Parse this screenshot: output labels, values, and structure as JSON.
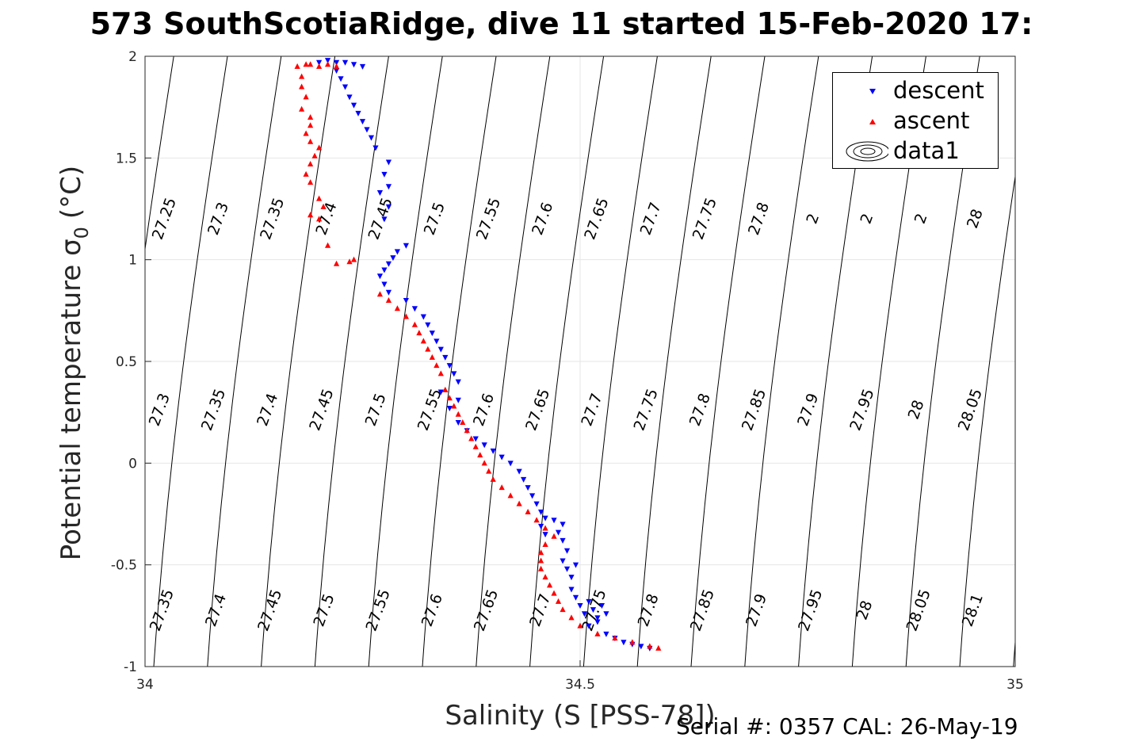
{
  "title": "573 SouthScotiaRidge, dive 11 started 15-Feb-2020 17:",
  "footer": "Serial #: 0357  CAL: 26-May-19",
  "chart_data": {
    "type": "scatter",
    "xlabel": "Salinity (S [PSS-78])",
    "ylabel": "Potential temperature σ",
    "ylabel_subscript": "0",
    "ylabel_unit": "(°C)",
    "xlim": [
      34,
      35
    ],
    "ylim": [
      -1,
      2
    ],
    "xticks": [
      34,
      34.5,
      35
    ],
    "xtick_labels": [
      "34",
      "34.5",
      "35"
    ],
    "yticks": [
      -1,
      -0.5,
      0,
      0.5,
      1,
      1.5,
      2
    ],
    "ytick_labels": [
      "-1",
      "-0.5",
      "0",
      "0.5",
      "1",
      "1.5",
      "2"
    ],
    "grid": true,
    "legend_position": "top-right",
    "series": [
      {
        "name": "descent",
        "color": "#0000ff",
        "marker": "triangle-down",
        "points": [
          [
            34.2,
            1.97
          ],
          [
            34.21,
            1.98
          ],
          [
            34.22,
            1.97
          ],
          [
            34.23,
            1.97
          ],
          [
            34.24,
            1.96
          ],
          [
            34.25,
            1.95
          ],
          [
            34.22,
            1.93
          ],
          [
            34.225,
            1.89
          ],
          [
            34.23,
            1.85
          ],
          [
            34.235,
            1.8
          ],
          [
            34.24,
            1.76
          ],
          [
            34.245,
            1.72
          ],
          [
            34.25,
            1.68
          ],
          [
            34.255,
            1.64
          ],
          [
            34.26,
            1.6
          ],
          [
            34.265,
            1.55
          ],
          [
            34.28,
            1.48
          ],
          [
            34.275,
            1.42
          ],
          [
            34.28,
            1.36
          ],
          [
            34.27,
            1.33
          ],
          [
            34.28,
            1.26
          ],
          [
            34.275,
            1.2
          ],
          [
            34.3,
            1.07
          ],
          [
            34.29,
            1.04
          ],
          [
            34.285,
            1.01
          ],
          [
            34.28,
            0.98
          ],
          [
            34.275,
            0.95
          ],
          [
            34.27,
            0.92
          ],
          [
            34.275,
            0.88
          ],
          [
            34.28,
            0.84
          ],
          [
            34.3,
            0.8
          ],
          [
            34.31,
            0.76
          ],
          [
            34.32,
            0.72
          ],
          [
            34.325,
            0.68
          ],
          [
            34.33,
            0.64
          ],
          [
            34.335,
            0.6
          ],
          [
            34.34,
            0.56
          ],
          [
            34.345,
            0.52
          ],
          [
            34.35,
            0.48
          ],
          [
            34.355,
            0.44
          ],
          [
            34.36,
            0.4
          ],
          [
            34.34,
            0.35
          ],
          [
            34.36,
            0.31
          ],
          [
            34.35,
            0.27
          ],
          [
            34.36,
            0.2
          ],
          [
            34.37,
            0.16
          ],
          [
            34.38,
            0.12
          ],
          [
            34.39,
            0.09
          ],
          [
            34.4,
            0.06
          ],
          [
            34.41,
            0.03
          ],
          [
            34.42,
            0.0
          ],
          [
            34.43,
            -0.04
          ],
          [
            34.435,
            -0.08
          ],
          [
            34.44,
            -0.12
          ],
          [
            34.445,
            -0.16
          ],
          [
            34.45,
            -0.2
          ],
          [
            34.455,
            -0.24
          ],
          [
            34.46,
            -0.27
          ],
          [
            34.455,
            -0.31
          ],
          [
            34.46,
            -0.35
          ],
          [
            34.47,
            -0.28
          ],
          [
            34.475,
            -0.34
          ],
          [
            34.48,
            -0.3
          ],
          [
            34.48,
            -0.38
          ],
          [
            34.485,
            -0.43
          ],
          [
            34.48,
            -0.48
          ],
          [
            34.485,
            -0.52
          ],
          [
            34.49,
            -0.56
          ],
          [
            34.495,
            -0.5
          ],
          [
            34.49,
            -0.62
          ],
          [
            34.495,
            -0.66
          ],
          [
            34.5,
            -0.7
          ],
          [
            34.505,
            -0.74
          ],
          [
            34.51,
            -0.68
          ],
          [
            34.515,
            -0.72
          ],
          [
            34.52,
            -0.76
          ],
          [
            34.525,
            -0.7
          ],
          [
            34.53,
            -0.74
          ],
          [
            34.52,
            -0.78
          ],
          [
            34.51,
            -0.8
          ],
          [
            34.53,
            -0.84
          ],
          [
            34.54,
            -0.86
          ],
          [
            34.55,
            -0.88
          ],
          [
            34.56,
            -0.89
          ],
          [
            34.57,
            -0.9
          ],
          [
            34.58,
            -0.91
          ]
        ]
      },
      {
        "name": "ascent",
        "color": "#ff0000",
        "marker": "triangle-up",
        "points": [
          [
            34.175,
            1.95
          ],
          [
            34.185,
            1.96
          ],
          [
            34.19,
            1.96
          ],
          [
            34.2,
            1.95
          ],
          [
            34.21,
            1.96
          ],
          [
            34.22,
            1.95
          ],
          [
            34.18,
            1.9
          ],
          [
            34.18,
            1.85
          ],
          [
            34.185,
            1.8
          ],
          [
            34.18,
            1.74
          ],
          [
            34.19,
            1.7
          ],
          [
            34.19,
            1.66
          ],
          [
            34.185,
            1.62
          ],
          [
            34.19,
            1.58
          ],
          [
            34.2,
            1.55
          ],
          [
            34.195,
            1.51
          ],
          [
            34.19,
            1.47
          ],
          [
            34.185,
            1.42
          ],
          [
            34.19,
            1.38
          ],
          [
            34.2,
            1.3
          ],
          [
            34.205,
            1.26
          ],
          [
            34.19,
            1.22
          ],
          [
            34.2,
            1.2
          ],
          [
            34.21,
            1.07
          ],
          [
            34.22,
            0.98
          ],
          [
            34.235,
            0.99
          ],
          [
            34.24,
            1.0
          ],
          [
            34.27,
            0.83
          ],
          [
            34.28,
            0.8
          ],
          [
            34.29,
            0.76
          ],
          [
            34.3,
            0.72
          ],
          [
            34.31,
            0.68
          ],
          [
            34.315,
            0.64
          ],
          [
            34.32,
            0.6
          ],
          [
            34.325,
            0.56
          ],
          [
            34.33,
            0.52
          ],
          [
            34.335,
            0.48
          ],
          [
            34.34,
            0.44
          ],
          [
            34.345,
            0.36
          ],
          [
            34.35,
            0.32
          ],
          [
            34.355,
            0.28
          ],
          [
            34.36,
            0.24
          ],
          [
            34.365,
            0.2
          ],
          [
            34.37,
            0.16
          ],
          [
            34.375,
            0.12
          ],
          [
            34.38,
            0.08
          ],
          [
            34.385,
            0.04
          ],
          [
            34.39,
            0.0
          ],
          [
            34.395,
            -0.04
          ],
          [
            34.4,
            -0.08
          ],
          [
            34.41,
            -0.12
          ],
          [
            34.42,
            -0.16
          ],
          [
            34.43,
            -0.2
          ],
          [
            34.44,
            -0.24
          ],
          [
            34.45,
            -0.28
          ],
          [
            34.46,
            -0.32
          ],
          [
            34.47,
            -0.36
          ],
          [
            34.46,
            -0.4
          ],
          [
            34.455,
            -0.44
          ],
          [
            34.455,
            -0.48
          ],
          [
            34.455,
            -0.52
          ],
          [
            34.46,
            -0.56
          ],
          [
            34.465,
            -0.6
          ],
          [
            34.47,
            -0.64
          ],
          [
            34.475,
            -0.68
          ],
          [
            34.48,
            -0.72
          ],
          [
            34.49,
            -0.76
          ],
          [
            34.5,
            -0.8
          ],
          [
            34.52,
            -0.84
          ],
          [
            34.54,
            -0.86
          ],
          [
            34.56,
            -0.88
          ],
          [
            34.58,
            -0.9
          ],
          [
            34.59,
            -0.91
          ]
        ]
      },
      {
        "name": "data1",
        "color": "#000000",
        "marker": "contour"
      }
    ]
  },
  "isopycnal_labels": {
    "top": [
      "27.25",
      "27.3",
      "27.35",
      "27.4",
      "27.45",
      "27.5",
      "27.55",
      "27.6",
      "27.65",
      "27.7",
      "27.75",
      "27.8",
      "2",
      "2",
      "2",
      "28"
    ],
    "middle": [
      "27.3",
      "27.35",
      "27.4",
      "27.45",
      "27.5",
      "27.55",
      "27.6",
      "27.65",
      "27.7",
      "27.75",
      "27.8",
      "27.85",
      "27.9",
      "27.95",
      "28",
      "28.05"
    ],
    "bottom": [
      "27.35",
      "27.4",
      "27.45",
      "27.5",
      "27.55",
      "27.6",
      "27.65",
      "27.7",
      "27.75",
      "27.8",
      "27.85",
      "27.9",
      "27.95",
      "28",
      "28.05",
      "28.1"
    ]
  }
}
